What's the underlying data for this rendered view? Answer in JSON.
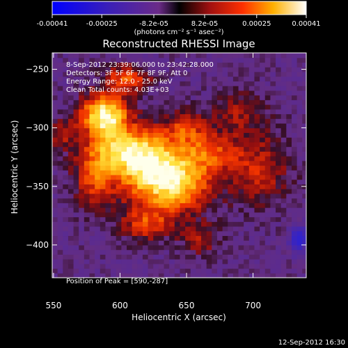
{
  "colorbar": {
    "tick_labels": [
      "-0.00041",
      "-0.00025",
      "-8.2e-05",
      "8.2e-05",
      "0.00025",
      "0.00041"
    ],
    "tick_values": [
      -0.00041,
      -0.00025,
      -8.2e-05,
      8.2e-05,
      0.00025,
      0.00041
    ],
    "range": [
      -0.00041,
      0.00041
    ],
    "units_label": "(photons cm⁻² s⁻¹ asec⁻²)"
  },
  "footer": {
    "timestamp": "12-Sep-2012 16:30"
  },
  "colors": {
    "background": "#000000",
    "text": "#ffffff"
  },
  "chart_data": {
    "type": "heatmap",
    "title": "Reconstructed RHESSI Image",
    "xlabel": "Heliocentric X (arcsec)",
    "ylabel": "Heliocentric Y (arcsec)",
    "xlim": [
      549,
      740
    ],
    "ylim": [
      -428,
      -236
    ],
    "x_ticks": [
      550,
      600,
      650,
      700
    ],
    "y_ticks": [
      -250,
      -300,
      -350,
      -400
    ],
    "x_tick_labels": [
      "550",
      "600",
      "650",
      "700"
    ],
    "y_tick_labels": [
      "−250",
      "−300",
      "−350",
      "−400"
    ],
    "annotations": [
      "8-Sep-2012 23:39:06.000 to 23:42:28.000",
      "Detectors: 3F 5F 6F 7F 8F 9F, Att 0",
      "Energy Range: 12.0 - 25.0 keV",
      "Clean     Total counts: 4.03E+03"
    ],
    "peak_label": "Position of Peak = [590,-287]",
    "peak": [
      590,
      -287
    ],
    "colorscale": "heat (blue-purple for negative, red-yellow-white for positive)",
    "sources": [
      {
        "x": 588,
        "y": -288,
        "sx": 12,
        "sy": 12,
        "amp": 1.0
      },
      {
        "x": 605,
        "y": -258,
        "sx": 12,
        "sy": 8,
        "amp": 0.55
      },
      {
        "x": 625,
        "y": -330,
        "sx": 24,
        "sy": 20,
        "amp": 0.72
      },
      {
        "x": 640,
        "y": -350,
        "sx": 20,
        "sy": 16,
        "amp": 0.65
      },
      {
        "x": 600,
        "y": -318,
        "sx": 18,
        "sy": 14,
        "amp": 0.6
      },
      {
        "x": 670,
        "y": -320,
        "sx": 14,
        "sy": 12,
        "amp": 0.42
      },
      {
        "x": 705,
        "y": -335,
        "sx": 16,
        "sy": 22,
        "amp": 0.38
      },
      {
        "x": 690,
        "y": -285,
        "sx": 14,
        "sy": 12,
        "amp": 0.3
      },
      {
        "x": 650,
        "y": -298,
        "sx": 10,
        "sy": 10,
        "amp": 0.38
      },
      {
        "x": 620,
        "y": -382,
        "sx": 14,
        "sy": 10,
        "amp": 0.45
      },
      {
        "x": 580,
        "y": -345,
        "sx": 10,
        "sy": 18,
        "amp": 0.4
      },
      {
        "x": 660,
        "y": -395,
        "sx": 10,
        "sy": 10,
        "amp": 0.3
      },
      {
        "x": 556,
        "y": -305,
        "sx": 8,
        "sy": 10,
        "amp": 0.28
      },
      {
        "x": 735,
        "y": -395,
        "sx": 5,
        "sy": 8,
        "amp": -0.7
      }
    ]
  }
}
